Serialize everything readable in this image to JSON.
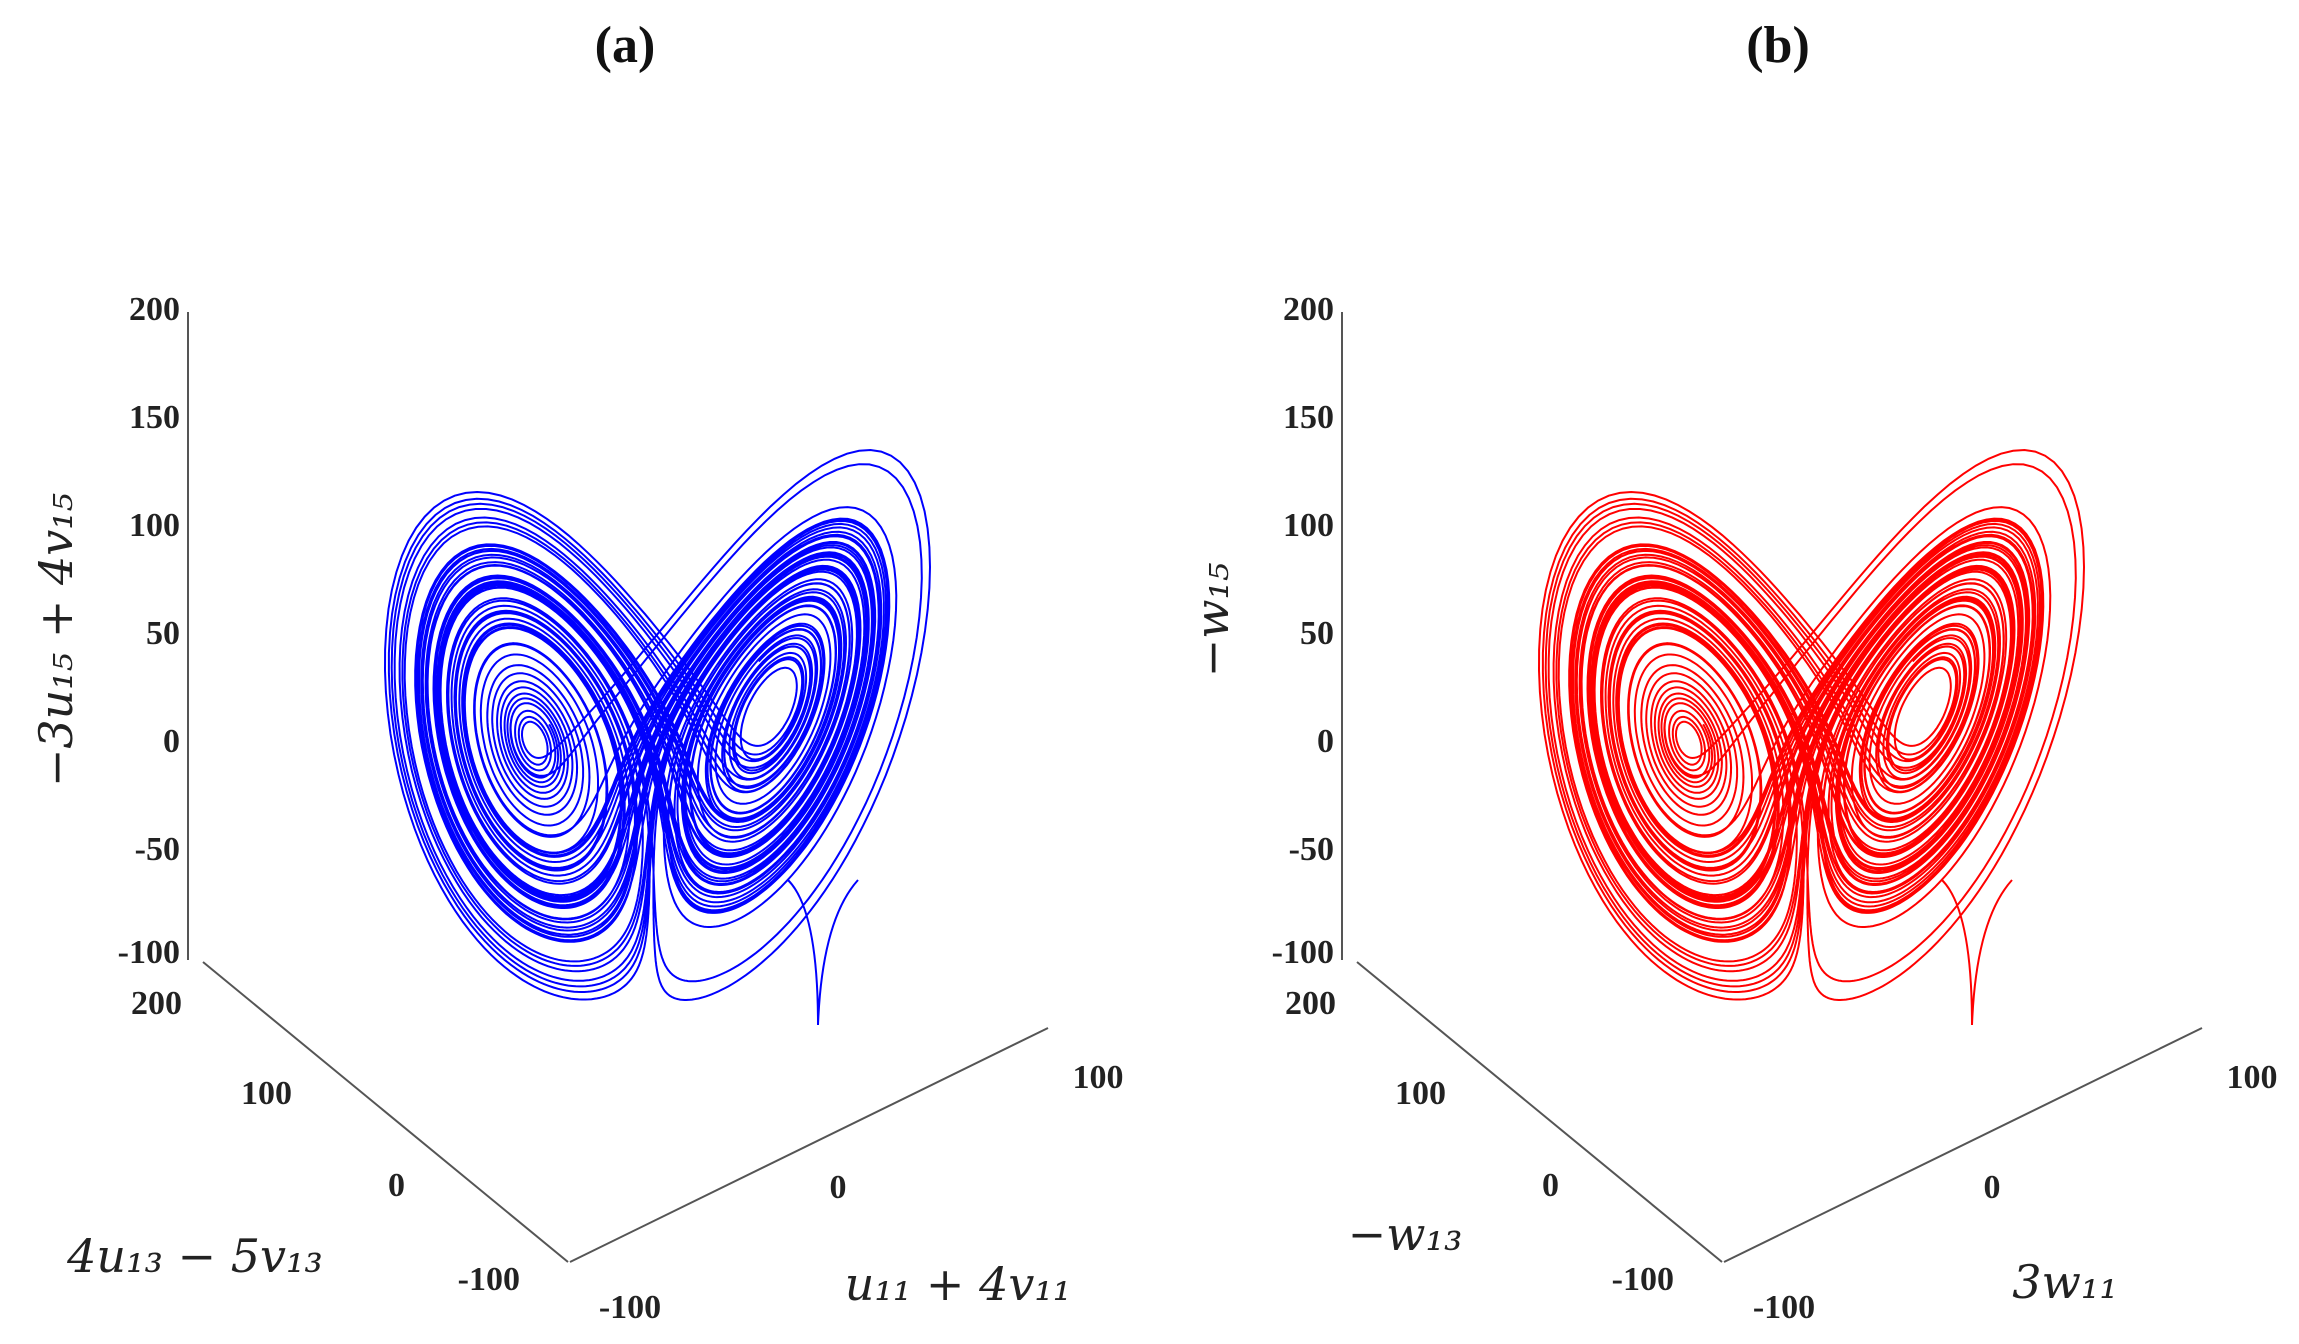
{
  "chart_data": [
    {
      "type": "line",
      "projection": "3d",
      "title": "(a)",
      "series_color": "#0000ff",
      "zlabel": "−3u₁₅ + 4v₁₅",
      "ylabel": "4u₁₃ − 5v₁₃",
      "xlabel": "u₁₁ + 4v₁₁",
      "zticks": [
        "200",
        "150",
        "100",
        "50",
        "0",
        "-50",
        "-100"
      ],
      "zlim": [
        -100,
        200
      ],
      "yticks": [
        "200",
        "100",
        "0",
        "-100"
      ],
      "ylim": [
        -100,
        200
      ],
      "xticks": [
        "-100",
        "0",
        "100"
      ],
      "xlim": [
        -100,
        100
      ],
      "attractor": {
        "wings": 2,
        "loops": 60,
        "z_range": [
          -100,
          120
        ]
      }
    },
    {
      "type": "line",
      "projection": "3d",
      "title": "(b)",
      "series_color": "#ff0000",
      "zlabel": "−w₁₅",
      "ylabel": "−w₁₃",
      "xlabel": "3w₁₁",
      "zticks": [
        "200",
        "150",
        "100",
        "50",
        "0",
        "-50",
        "-100"
      ],
      "zlim": [
        -100,
        200
      ],
      "yticks": [
        "200",
        "100",
        "0",
        "-100"
      ],
      "ylim": [
        -100,
        200
      ],
      "xticks": [
        "-100",
        "0",
        "100"
      ],
      "xlim": [
        -100,
        100
      ],
      "attractor": {
        "wings": 2,
        "loops": 60,
        "z_range": [
          -100,
          120
        ]
      }
    }
  ]
}
